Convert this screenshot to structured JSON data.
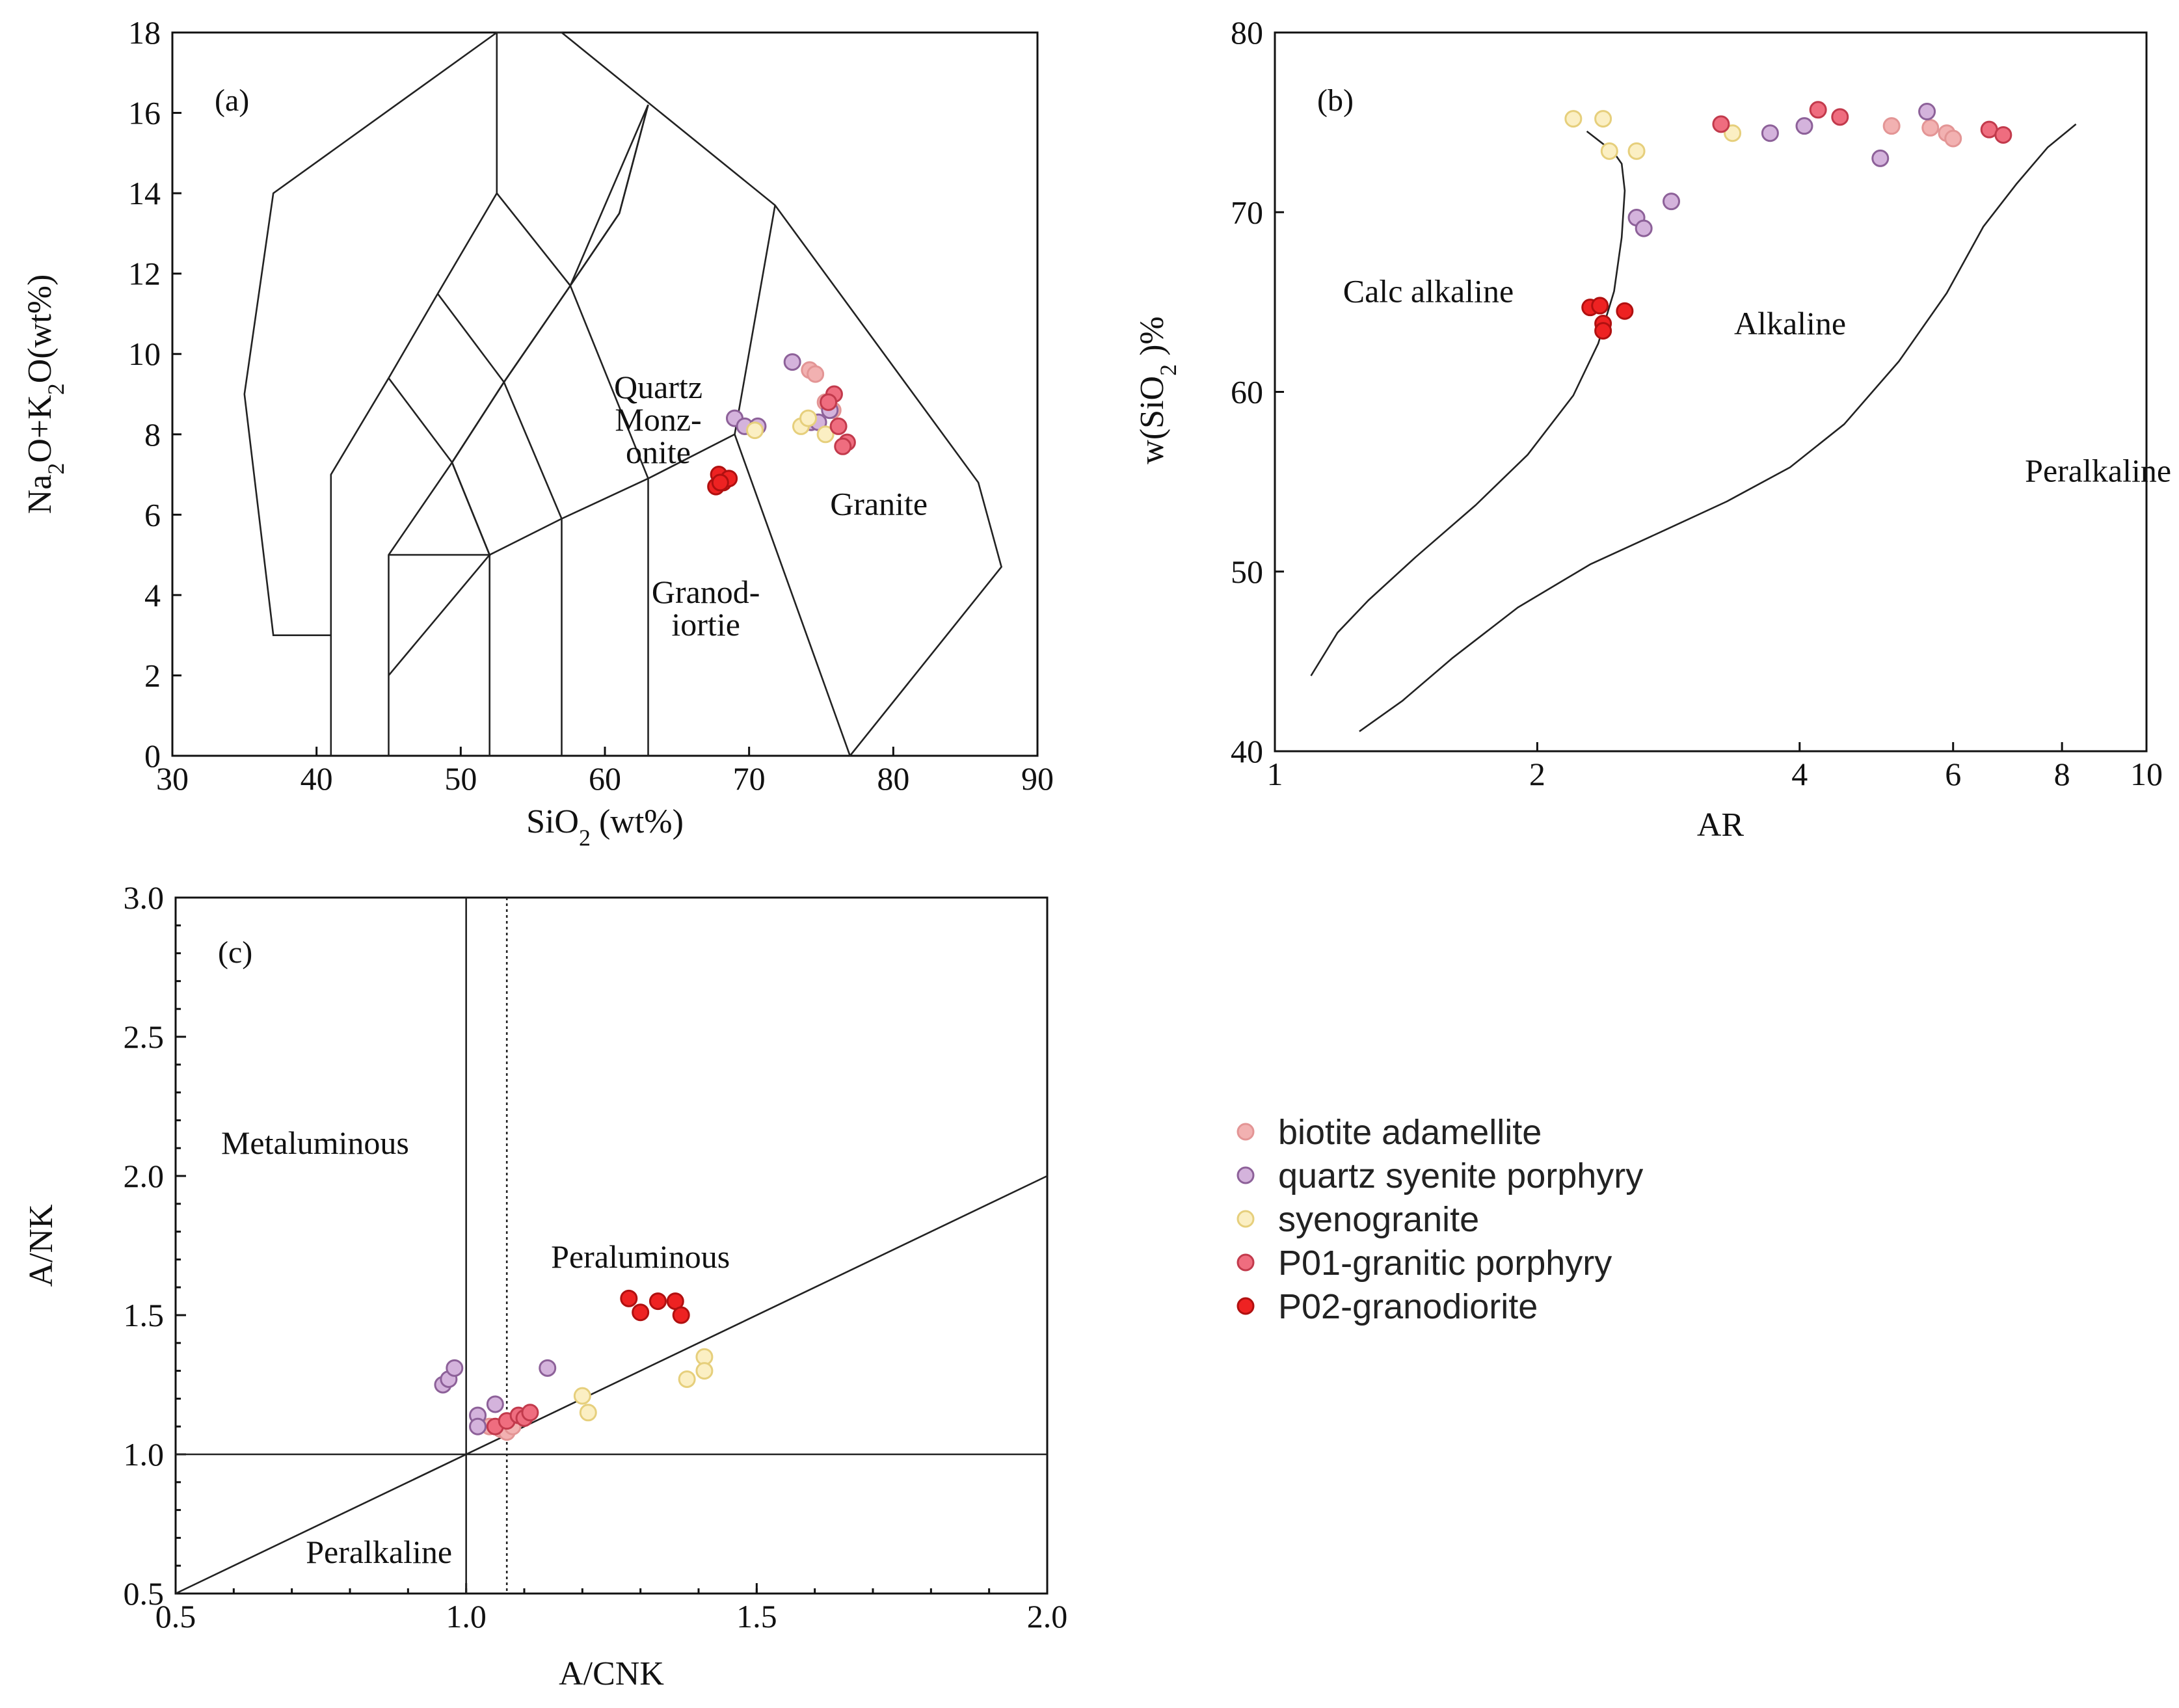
{
  "series_styles": [
    {
      "name": "biotite adamellite",
      "fill": "#f2b1b1",
      "stroke": "#e39595"
    },
    {
      "name": "quartz syenite porphyry",
      "fill": "#d4b3dc",
      "stroke": "#8d6199"
    },
    {
      "name": "syenogranite",
      "fill": "#fbefc3",
      "stroke": "#e6cf7c"
    },
    {
      "name": "P01-granitic porphyry",
      "fill": "#ef6d7f",
      "stroke": "#c23a4c"
    },
    {
      "name": "P02-granodiorite",
      "fill": "#ee2222",
      "stroke": "#b01010"
    }
  ],
  "legend": {
    "items": [
      "biotite adamellite",
      "quartz syenite porphyry",
      "syenogranite",
      "P01-granitic porphyry",
      "P02-granodiorite"
    ]
  },
  "chart_data": [
    {
      "type": "scatter",
      "panel_label": "(a)",
      "title": "",
      "xlabel": "SiO2 (wt%)",
      "xlabel_main": "SiO",
      "xlabel_sub": "2",
      "xlabel_tail": " (wt%)",
      "ylabel": "Na2O+K2O(wt%)",
      "ylabel_parts": [
        "Na",
        "2",
        "O+K",
        "2",
        "O(wt%)"
      ],
      "xlim": [
        30,
        90
      ],
      "ylim": [
        0,
        18
      ],
      "xticks": [
        30,
        40,
        50,
        60,
        70,
        80,
        90
      ],
      "yticks": [
        0,
        2,
        4,
        6,
        8,
        10,
        12,
        14,
        16,
        18
      ],
      "field_labels": [
        {
          "lines": [
            "Quartz",
            "Monz-",
            "onite"
          ],
          "x": 63.7,
          "y": 8.9
        },
        {
          "lines": [
            "Granite"
          ],
          "x": 79,
          "y": 6.0
        },
        {
          "lines": [
            "Granod-",
            "iortie"
          ],
          "x": 67,
          "y": 3.8
        }
      ],
      "field_boundaries": [
        [
          [
            41,
            0
          ],
          [
            41,
            7
          ],
          [
            45,
            9.4
          ],
          [
            48.4,
            11.5
          ],
          [
            52.5,
            14
          ],
          [
            57.6,
            11.7
          ],
          [
            63,
            16.2
          ]
        ],
        [
          [
            45,
            0
          ],
          [
            45,
            5
          ],
          [
            49.4,
            7.3
          ],
          [
            53,
            9.3
          ],
          [
            57.6,
            11.7
          ],
          [
            61,
            13.5
          ],
          [
            63,
            16.2
          ]
        ],
        [
          [
            52,
            0
          ],
          [
            52,
            5
          ],
          [
            57,
            5.9
          ],
          [
            63,
            6.9
          ],
          [
            69,
            8
          ],
          [
            71.8,
            13.7
          ]
        ],
        [
          [
            57,
            0
          ],
          [
            57,
            5.9
          ]
        ],
        [
          [
            63,
            0
          ],
          [
            63,
            6.9
          ]
        ],
        [
          [
            45,
            5
          ],
          [
            52,
            5
          ],
          [
            49.4,
            7.3
          ],
          [
            53,
            9.3
          ],
          [
            57.6,
            11.7
          ],
          [
            61,
            13.5
          ],
          [
            63,
            16.2
          ]
        ],
        [
          [
            45,
            2
          ],
          [
            52,
            5
          ]
        ],
        [
          [
            41,
            3
          ],
          [
            37,
            3
          ],
          [
            35,
            9
          ],
          [
            37,
            14
          ],
          [
            52.5,
            18
          ],
          [
            57,
            18
          ],
          [
            71.8,
            13.7
          ],
          [
            85.9,
            6.8
          ],
          [
            87.5,
            4.7
          ],
          [
            77,
            0
          ]
        ],
        [
          [
            52.5,
            18
          ],
          [
            52.5,
            14
          ]
        ],
        [
          [
            69,
            8
          ],
          [
            77,
            0
          ]
        ],
        [
          [
            48.4,
            11.5
          ],
          [
            53,
            9.3
          ]
        ],
        [
          [
            45,
            9.4
          ],
          [
            49.4,
            7.3
          ]
        ],
        [
          [
            49.4,
            7.3
          ],
          [
            52,
            5
          ]
        ],
        [
          [
            53,
            9.3
          ],
          [
            57,
            5.9
          ]
        ],
        [
          [
            57.6,
            11.7
          ],
          [
            63,
            6.9
          ]
        ]
      ],
      "series": [
        {
          "name": "biotite adamellite",
          "x": [
            74.2,
            74.6,
            75.3,
            75.8
          ],
          "y": [
            9.6,
            9.5,
            8.8,
            8.6
          ]
        },
        {
          "name": "quartz syenite porphyry",
          "x": [
            73.0,
            69.0,
            69.7,
            70.6,
            74.3,
            74.8,
            75.6
          ],
          "y": [
            9.8,
            8.4,
            8.2,
            8.2,
            8.3,
            8.3,
            8.6
          ]
        },
        {
          "name": "syenogranite",
          "x": [
            73.6,
            74.1,
            70.4,
            75.3
          ],
          "y": [
            8.2,
            8.4,
            8.1,
            8.0
          ]
        },
        {
          "name": "P01-granitic porphyry",
          "x": [
            75.9,
            75.5,
            76.2,
            76.8,
            76.5
          ],
          "y": [
            9.0,
            8.8,
            8.2,
            7.8,
            7.7
          ]
        },
        {
          "name": "P02-granodiorite",
          "x": [
            67.9,
            68.2,
            68.6,
            67.7,
            68.0
          ],
          "y": [
            7.0,
            6.8,
            6.9,
            6.7,
            6.8
          ]
        }
      ]
    },
    {
      "type": "scatter",
      "panel_label": "(b)",
      "title": "",
      "xlabel": "AR",
      "ylabel": "w(SiO2)%",
      "ylabel_parts": [
        "w(SiO",
        "2",
        " )%"
      ],
      "xscale": "log",
      "xlim": [
        1,
        10
      ],
      "ylim": [
        40,
        80
      ],
      "xticks": [
        1,
        2,
        4,
        6,
        8,
        10
      ],
      "yticks": [
        40,
        50,
        60,
        70,
        80
      ],
      "field_labels": [
        {
          "lines": [
            "Calc alkaline"
          ],
          "x": 1.5,
          "y": 65
        },
        {
          "lines": [
            "Alkaline"
          ],
          "x": 3.9,
          "y": 63.2
        },
        {
          "lines": [
            "Peralkaline"
          ],
          "x": 8.8,
          "y": 55
        }
      ],
      "boundaries": [
        {
          "x": [
            1.1,
            1.18,
            1.28,
            1.45,
            1.7,
            1.95,
            2.2,
            2.35,
            2.45,
            2.5,
            2.52,
            2.5,
            2.45,
            2.38,
            2.28
          ],
          "y": [
            44.2,
            46.6,
            48.4,
            50.8,
            53.7,
            56.5,
            59.8,
            62.7,
            65.6,
            68.6,
            71.2,
            72.7,
            73.3,
            73.8,
            74.5
          ]
        },
        {
          "x": [
            1.25,
            1.4,
            1.6,
            1.9,
            2.3,
            2.8,
            3.3,
            3.9,
            4.5,
            5.2,
            5.9,
            6.5,
            7.1,
            7.7,
            8.3
          ],
          "y": [
            41.1,
            42.8,
            45.2,
            48.0,
            50.4,
            52.3,
            53.9,
            55.8,
            58.2,
            61.7,
            65.5,
            69.2,
            71.6,
            73.6,
            74.9
          ]
        }
      ],
      "series": [
        {
          "name": "biotite adamellite",
          "x": [
            5.1,
            5.65,
            5.9,
            6.0
          ],
          "y": [
            74.8,
            74.7,
            74.4,
            74.1
          ]
        },
        {
          "name": "quartz syenite porphyry",
          "x": [
            3.7,
            4.05,
            4.95,
            5.6,
            2.6,
            2.65,
            2.85
          ],
          "y": [
            74.4,
            74.8,
            73.0,
            75.6,
            69.7,
            69.1,
            70.6
          ]
        },
        {
          "name": "syenogranite",
          "x": [
            2.2,
            2.38,
            2.42,
            2.6,
            3.35
          ],
          "y": [
            75.2,
            75.2,
            73.4,
            73.4,
            74.4
          ]
        },
        {
          "name": "P01-granitic porphyry",
          "x": [
            3.25,
            4.2,
            4.45,
            6.6,
            6.85
          ],
          "y": [
            74.9,
            75.7,
            75.3,
            74.6,
            74.3
          ]
        },
        {
          "name": "P02-granodiorite",
          "x": [
            2.3,
            2.36,
            2.38,
            2.38,
            2.52
          ],
          "y": [
            64.7,
            64.8,
            63.8,
            63.4,
            64.5
          ]
        }
      ]
    },
    {
      "type": "scatter",
      "panel_label": "(c)",
      "title": "",
      "xlabel": "A/CNK",
      "ylabel": "A/NK",
      "xlim": [
        0.5,
        2.0
      ],
      "ylim": [
        0.5,
        3.0
      ],
      "xticks": [
        0.5,
        1.0,
        1.5,
        2.0
      ],
      "yticks": [
        0.5,
        1.0,
        1.5,
        2.0,
        2.5,
        3.0
      ],
      "xtick_labels": [
        "0.5",
        "1.0",
        "1.5",
        "2.0"
      ],
      "ytick_labels": [
        "0.5",
        "1.0",
        "1.5",
        "2.0",
        "2.5",
        "3.0"
      ],
      "field_labels": [
        {
          "lines": [
            "Metaluminous"
          ],
          "x": 0.74,
          "y": 2.08
        },
        {
          "lines": [
            "Peraluminous"
          ],
          "x": 1.3,
          "y": 1.67
        },
        {
          "lines": [
            "Peralkaline"
          ],
          "x": 0.85,
          "y": 0.61
        }
      ],
      "reference_lines": {
        "vertical_solid": 1.0,
        "vertical_dotted": 1.07,
        "horizontal": 1.0,
        "diagonal": [
          [
            0.5,
            0.5
          ],
          [
            2.0,
            2.0
          ]
        ]
      },
      "series": [
        {
          "name": "biotite adamellite",
          "x": [
            1.04,
            1.06,
            1.07,
            1.08
          ],
          "y": [
            1.1,
            1.09,
            1.08,
            1.1
          ]
        },
        {
          "name": "quartz syenite porphyry",
          "x": [
            0.96,
            0.97,
            0.98,
            1.02,
            1.02,
            1.05,
            1.14
          ],
          "y": [
            1.25,
            1.27,
            1.31,
            1.14,
            1.1,
            1.18,
            1.31
          ]
        },
        {
          "name": "syenogranite",
          "x": [
            1.2,
            1.21,
            1.38,
            1.41,
            1.41
          ],
          "y": [
            1.21,
            1.15,
            1.27,
            1.35,
            1.3
          ]
        },
        {
          "name": "P01-granitic porphyry",
          "x": [
            1.05,
            1.07,
            1.09,
            1.1,
            1.11
          ],
          "y": [
            1.1,
            1.12,
            1.14,
            1.13,
            1.15
          ]
        },
        {
          "name": "P02-granodiorite",
          "x": [
            1.28,
            1.3,
            1.33,
            1.36,
            1.37
          ],
          "y": [
            1.56,
            1.51,
            1.55,
            1.55,
            1.5
          ]
        }
      ]
    }
  ]
}
